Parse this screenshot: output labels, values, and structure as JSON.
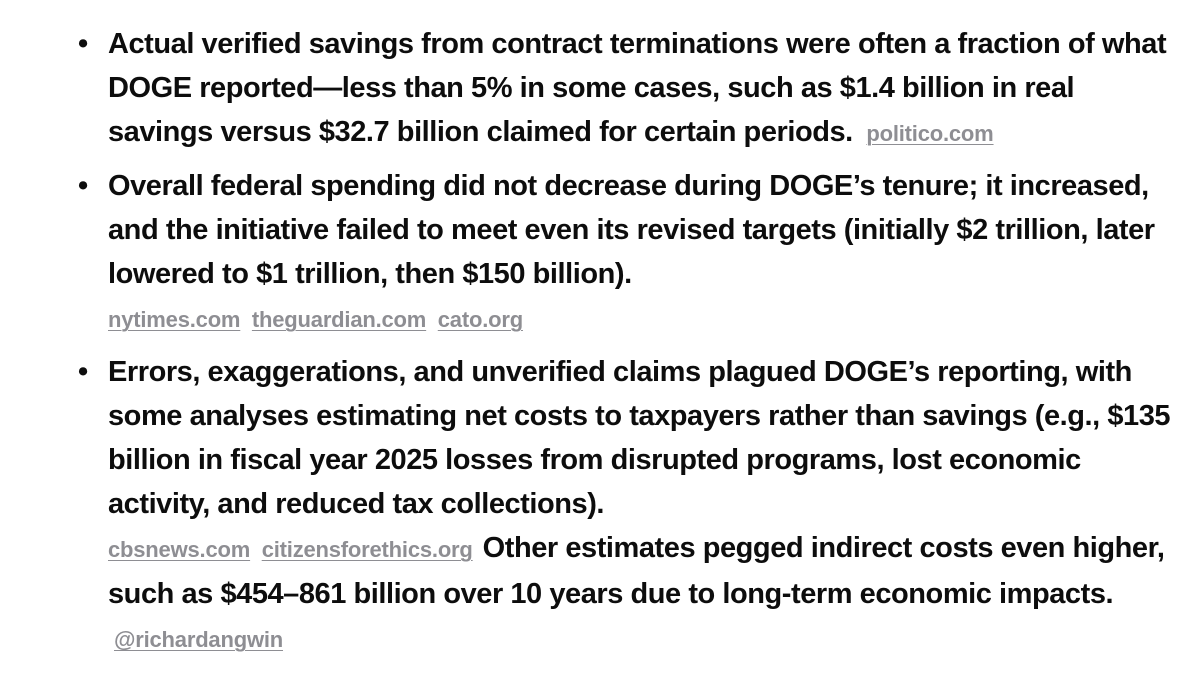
{
  "bullets": [
    {
      "text": "Actual verified savings from contract terminations were often a fraction of what DOGE reported—less than 5% in some cases, such as $1.4 billion in real savings versus $32.7 billion claimed for certain periods.",
      "sources": [
        "politico.com"
      ]
    },
    {
      "text": "Overall federal spending did not decrease during DOGE’s tenure; it increased, and the initiative failed to meet even its revised targets (initially $2 trillion, later lowered to $1 trillion, then $150 billion).",
      "sources": [
        "nytimes.com",
        "theguardian.com",
        "cato.org"
      ]
    },
    {
      "text": "Errors, exaggerations, and unverified claims plagued DOGE’s reporting, with some analyses estimating net costs to taxpayers rather than savings (e.g., $135 billion in fiscal year 2025 losses from disrupted programs, lost economic activity, and reduced tax collections).",
      "sources": [
        "cbsnews.com",
        "citizensforethics.org"
      ],
      "continuation_text": "Other estimates pegged indirect costs even higher, such as $454–861 billion over 10 years due to long-term economic impacts.",
      "continuation_sources": [
        "@richardangwin"
      ]
    }
  ]
}
